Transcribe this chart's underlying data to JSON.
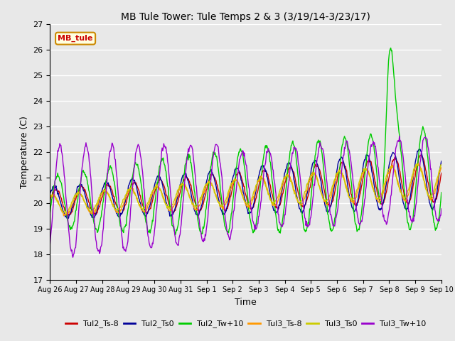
{
  "title": "MB Tule Tower: Tule Temps 2 & 3 (3/19/14-3/23/17)",
  "xlabel": "Time",
  "ylabel": "Temperature (C)",
  "ylim": [
    17.0,
    27.0
  ],
  "yticks": [
    17.0,
    18.0,
    19.0,
    20.0,
    21.0,
    22.0,
    23.0,
    24.0,
    25.0,
    26.0,
    27.0
  ],
  "xtick_labels": [
    "Aug 26",
    "Aug 27",
    "Aug 28",
    "Aug 29",
    "Aug 30",
    "Aug 31",
    "Sep 1",
    "Sep 2",
    "Sep 3",
    "Sep 4",
    "Sep 5",
    "Sep 6",
    "Sep 7",
    "Sep 8",
    "Sep 9",
    "Sep 10"
  ],
  "legend_items": [
    {
      "label": "Tul2_Ts-8",
      "color": "#cc0000"
    },
    {
      "label": "Tul2_Ts0",
      "color": "#000099"
    },
    {
      "label": "Tul2_Tw+10",
      "color": "#00cc00"
    },
    {
      "label": "Tul3_Ts-8",
      "color": "#ff9900"
    },
    {
      "label": "Tul3_Ts0",
      "color": "#cccc00"
    },
    {
      "label": "Tul3_Tw+10",
      "color": "#9900cc"
    }
  ],
  "annotation_label": "MB_tule",
  "annotation_color": "#cc0000",
  "fig_facecolor": "#e8e8e8",
  "plot_facecolor": "#e8e8e8"
}
